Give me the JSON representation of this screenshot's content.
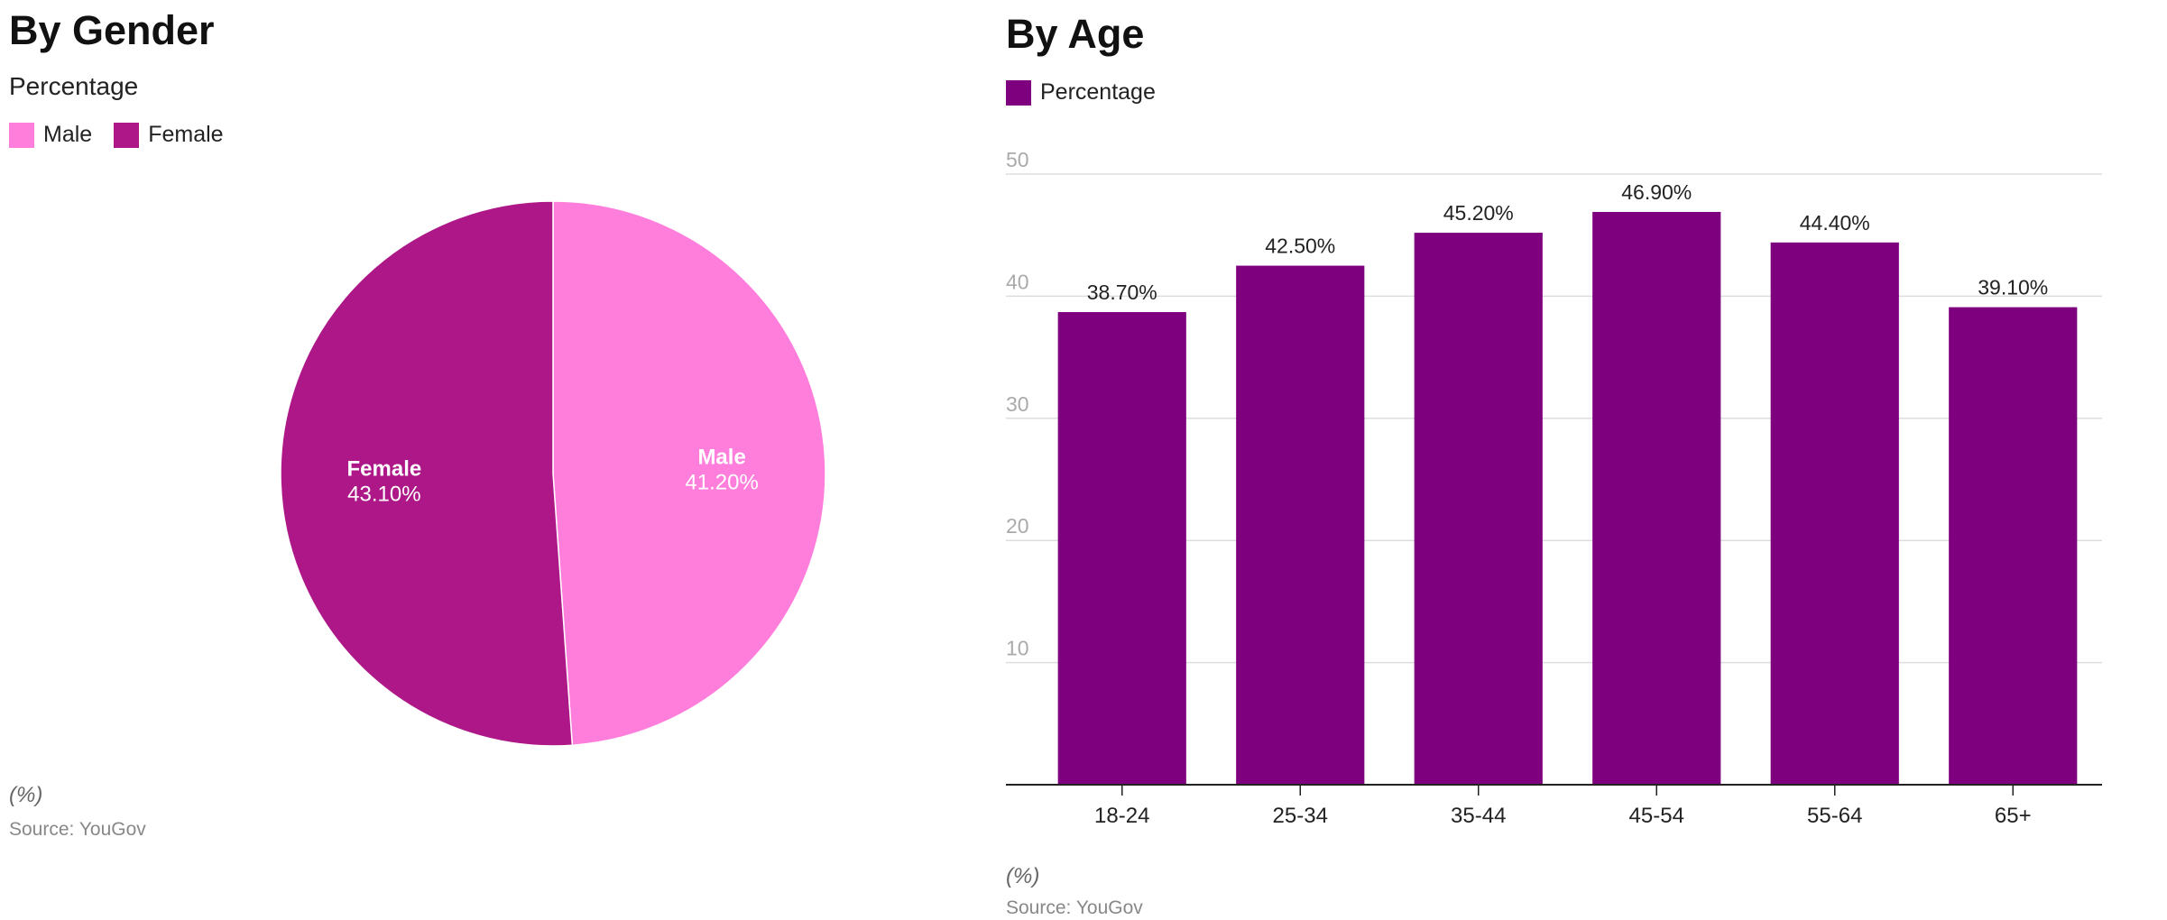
{
  "chart_data": [
    {
      "type": "pie",
      "title": "By Gender",
      "subtitle": "Percentage",
      "legend": [
        {
          "label": "Male",
          "color": "#ff7ddb"
        },
        {
          "label": "Female",
          "color": "#ae1788"
        }
      ],
      "slices": [
        {
          "label": "Male",
          "value": 41.2,
          "display": "41.20%",
          "color": "#ff7ddb"
        },
        {
          "label": "Female",
          "value": 43.1,
          "display": "43.10%",
          "color": "#ae1788"
        }
      ],
      "legend_position": "top-left",
      "note": "(%)",
      "source": "Source: YouGov"
    },
    {
      "type": "bar",
      "title": "By Age",
      "legend": [
        {
          "label": "Percentage",
          "color": "#7f007f"
        }
      ],
      "categories": [
        "18-24",
        "25-34",
        "35-44",
        "45-54",
        "55-64",
        "65+"
      ],
      "series": [
        {
          "name": "Percentage",
          "color": "#7f007f",
          "values": [
            38.7,
            42.5,
            45.2,
            46.9,
            44.4,
            39.1
          ],
          "labels": [
            "38.70%",
            "42.50%",
            "45.20%",
            "46.90%",
            "44.40%",
            "39.10%"
          ]
        }
      ],
      "ylim": [
        0,
        50
      ],
      "yticks": [
        10,
        20,
        30,
        40,
        50
      ],
      "grid": true,
      "legend_position": "top-left",
      "note": "(%)",
      "source": "Source: YouGov"
    }
  ]
}
